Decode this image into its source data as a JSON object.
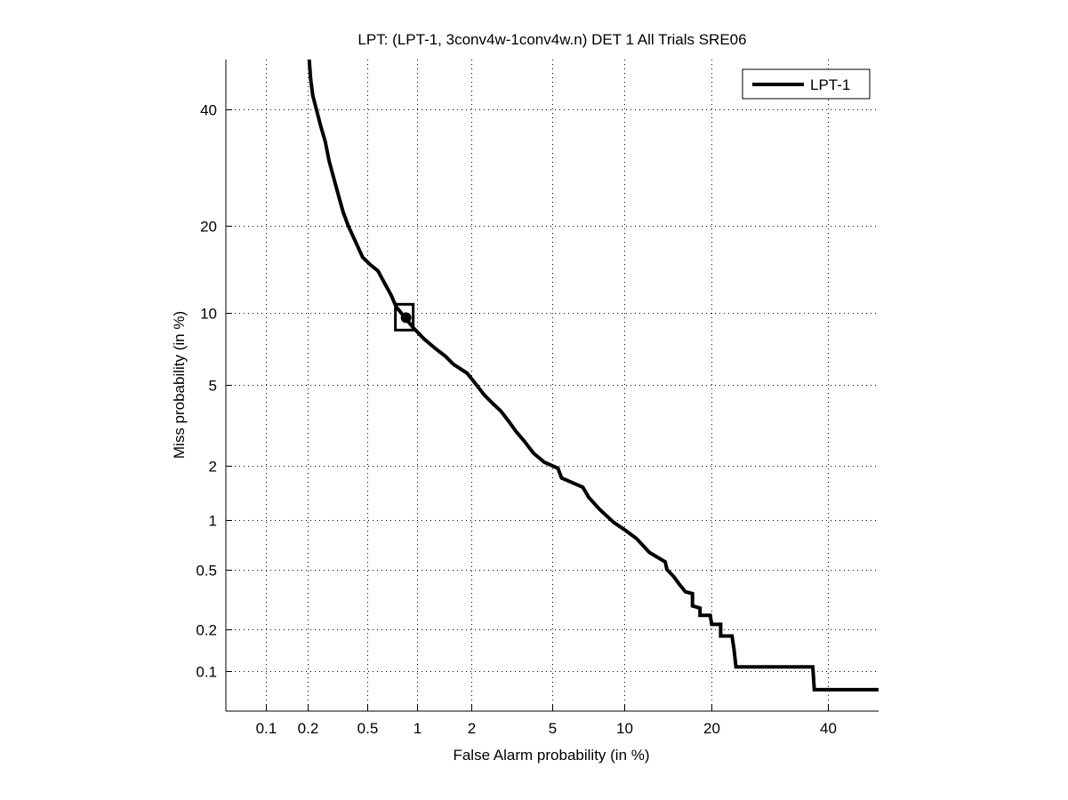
{
  "chart_data": {
    "type": "line",
    "title": "LPT: (LPT-1, 3conv4w-1conv4w.n) DET 1 All Trials SRE06",
    "xlabel": "False Alarm probability (in %)",
    "ylabel": "Miss probability (in %)",
    "x_scale": "normal-deviate",
    "y_scale": "normal-deviate",
    "xlim": [
      0.05,
      50
    ],
    "ylim": [
      0.05,
      50
    ],
    "grid": true,
    "x_ticks": [
      0.1,
      0.2,
      0.5,
      1,
      2,
      5,
      10,
      20,
      40
    ],
    "x_tick_labels": [
      "0.1",
      "0.2",
      "0.5",
      "1",
      "2",
      "5",
      "10",
      "20",
      "40"
    ],
    "y_ticks": [
      0.1,
      0.2,
      0.5,
      1,
      2,
      5,
      10,
      20,
      40
    ],
    "y_tick_labels": [
      "0.1",
      "0.2",
      "0.5",
      "1",
      "2",
      "5",
      "10",
      "20",
      "40"
    ],
    "legend": {
      "placement": "top-right",
      "entries": [
        "LPT-1"
      ]
    },
    "series": [
      {
        "name": "LPT-1",
        "color": "#000000",
        "points": [
          [
            0.205,
            50
          ],
          [
            0.21,
            46
          ],
          [
            0.217,
            42.8
          ],
          [
            0.23,
            40
          ],
          [
            0.245,
            37
          ],
          [
            0.264,
            33.9
          ],
          [
            0.28,
            30.5
          ],
          [
            0.3,
            27.6
          ],
          [
            0.325,
            24.5
          ],
          [
            0.348,
            22.0
          ],
          [
            0.376,
            20.0
          ],
          [
            0.42,
            17.8
          ],
          [
            0.465,
            15.9
          ],
          [
            0.52,
            15.0
          ],
          [
            0.58,
            14.3
          ],
          [
            0.64,
            12.9
          ],
          [
            0.7,
            11.7
          ],
          [
            0.75,
            10.6
          ],
          [
            0.84,
            9.7
          ],
          [
            0.96,
            8.7
          ],
          [
            1.1,
            7.9
          ],
          [
            1.28,
            7.2
          ],
          [
            1.45,
            6.7
          ],
          [
            1.6,
            6.2
          ],
          [
            1.9,
            5.66
          ],
          [
            2.1,
            5.1
          ],
          [
            2.35,
            4.5
          ],
          [
            2.6,
            4.1
          ],
          [
            2.84,
            3.8
          ],
          [
            3.1,
            3.4
          ],
          [
            3.37,
            3.03
          ],
          [
            3.7,
            2.7
          ],
          [
            4.1,
            2.34
          ],
          [
            4.6,
            2.1
          ],
          [
            5.3,
            1.95
          ],
          [
            5.5,
            1.73
          ],
          [
            6.2,
            1.62
          ],
          [
            6.8,
            1.54
          ],
          [
            7.2,
            1.35
          ],
          [
            8.0,
            1.15
          ],
          [
            9.1,
            0.97
          ],
          [
            10.0,
            0.88
          ],
          [
            11.1,
            0.78
          ],
          [
            12.4,
            0.64
          ],
          [
            13.2,
            0.6
          ],
          [
            14.1,
            0.56
          ],
          [
            14.3,
            0.5
          ],
          [
            15.1,
            0.45
          ],
          [
            15.8,
            0.4
          ],
          [
            16.5,
            0.36
          ],
          [
            17.4,
            0.35
          ],
          [
            17.4,
            0.29
          ],
          [
            18.4,
            0.28
          ],
          [
            18.4,
            0.25
          ],
          [
            19.8,
            0.25
          ],
          [
            20.0,
            0.217
          ],
          [
            21.3,
            0.217
          ],
          [
            21.3,
            0.18
          ],
          [
            23.0,
            0.18
          ],
          [
            23.3,
            0.145
          ],
          [
            23.6,
            0.108
          ],
          [
            37.0,
            0.108
          ],
          [
            37.3,
            0.073
          ],
          [
            50.0,
            0.073
          ]
        ]
      }
    ],
    "operating_points": [
      {
        "series": "LPT-1",
        "marker": "square+filled-circle",
        "x": 0.84,
        "y": 9.7
      }
    ]
  }
}
